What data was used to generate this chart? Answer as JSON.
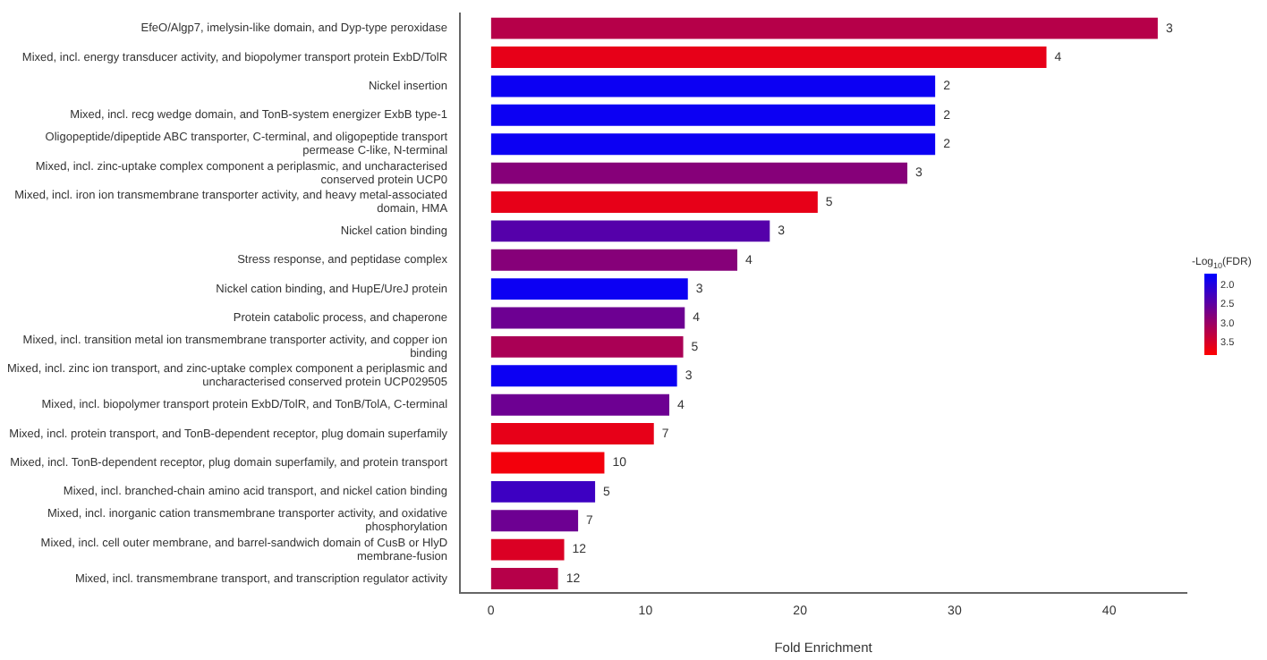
{
  "chart_data": {
    "type": "bar",
    "orientation": "horizontal",
    "xlabel": "Fold Enrichment",
    "clabel": "-Log$_{10}$(FDR)",
    "categories": [
      "EfeO/Algp7, imelysin-like domain, and Dyp-type peroxidase",
      "Mixed, incl. energy transducer activity, and biopolymer transport protein ExbD/TolR",
      "Nickel insertion",
      "Mixed, incl. recg wedge domain, and TonB-system energizer ExbB type-1",
      "Oligopeptide/dipeptide ABC transporter, C-terminal, and oligopeptide transport permease C-like, N-terminal",
      "Mixed, incl. zinc-uptake complex component a periplasmic, and uncharacterised conserved protein UCP0",
      "Mixed, incl. iron ion transmembrane transporter activity, and heavy metal-associated domain, HMA",
      "Nickel cation binding",
      "Stress response, and peptidase complex",
      "Nickel cation binding, and HupE/UreJ protein",
      "Protein catabolic process, and chaperone",
      "Mixed, incl. transition metal ion transmembrane transporter activity, and copper ion binding",
      "Mixed, incl. zinc ion transport, and zinc-uptake complex component a periplasmic and uncharacterised conserved protein UCP029505",
      "Mixed, incl. biopolymer transport protein ExbD/TolR, and TonB/TolA, C-terminal",
      "Mixed, incl. protein transport, and TonB-dependent receptor, plug domain superfamily",
      "Mixed, incl. TonB-dependent receptor, plug domain superfamily, and protein transport",
      "Mixed, incl. branched-chain amino acid transport, and nickel cation binding",
      "Mixed, incl. inorganic cation transmembrane transporter activity, and oxidative phosphorylation",
      "Mixed, incl. cell outer membrane, and barrel-sandwich domain of CusB or HlyD membrane-fusion",
      "Mixed, incl. transmembrane transport, and transcription regulator activity"
    ],
    "values": [
      43.2,
      36.0,
      28.8,
      28.8,
      28.8,
      27.0,
      21.2,
      18.1,
      16.0,
      12.8,
      12.6,
      12.5,
      12.1,
      11.6,
      10.6,
      7.4,
      6.8,
      5.7,
      4.8,
      4.4
    ],
    "cvalues": [
      3.2,
      3.6,
      1.8,
      1.8,
      1.8,
      2.8,
      3.6,
      2.4,
      2.8,
      1.8,
      2.6,
      3.1,
      1.8,
      2.6,
      3.6,
      3.7,
      2.2,
      2.6,
      3.5,
      3.2
    ],
    "annotations": [
      {
        "text": "3",
        "x": 43.2,
        "y": "EfeO/Algp7, imelysin-like domain, and Dyp-type peroxidase"
      },
      {
        "text": "4",
        "x": 36.0,
        "y": "Mixed, incl. energy transducer activity, and biopolymer transport protein ExbD/TolR"
      },
      {
        "text": "2",
        "x": 28.8,
        "y": "Nickel insertion"
      },
      {
        "text": "2",
        "x": 28.8,
        "y": "Mixed, incl. recg wedge domain, and TonB-system energizer ExbB type-1"
      },
      {
        "text": "2",
        "x": 28.8,
        "y": "Oligopeptide/dipeptide ABC transporter, C-terminal, and oligopeptide transport permease C-like, N-terminal"
      },
      {
        "text": "3",
        "x": 27.0,
        "y": "Mixed, incl. zinc-uptake complex component a periplasmic, and uncharacterised conserved protein UCP0"
      },
      {
        "text": "5",
        "x": 21.2,
        "y": "Mixed, incl. iron ion transmembrane transporter activity, and heavy metal-associated domain, HMA"
      },
      {
        "text": "3",
        "x": 18.1,
        "y": "Nickel cation binding"
      },
      {
        "text": "4",
        "x": 16.0,
        "y": "Stress response, and peptidase complex"
      },
      {
        "text": "3",
        "x": 12.8,
        "y": "Nickel cation binding, and HupE/UreJ protein"
      },
      {
        "text": "4",
        "x": 12.6,
        "y": "Protein catabolic process, and chaperone"
      },
      {
        "text": "5",
        "x": 12.5,
        "y": "Mixed, incl. transition metal ion transmembrane transporter activity, and copper ion binding"
      },
      {
        "text": "3",
        "x": 12.1,
        "y": "Mixed, incl. zinc ion transport, and zinc-uptake complex component a periplasmic and uncharacterised conserved protein UCP029505"
      },
      {
        "text": "4",
        "x": 11.6,
        "y": "Mixed, incl. biopolymer transport protein ExbD/TolR, and TonB/TolA, C-terminal"
      },
      {
        "text": "7",
        "x": 10.6,
        "y": "Mixed, incl. protein transport, and TonB-dependent receptor, plug domain superfamily"
      },
      {
        "text": "10",
        "x": 7.4,
        "y": "Mixed, incl. TonB-dependent receptor, plug domain superfamily, and protein transport"
      },
      {
        "text": "5",
        "x": 6.8,
        "y": "Mixed, incl. branched-chain amino acid transport, and nickel cation binding"
      },
      {
        "text": "7",
        "x": 5.7,
        "y": "Mixed, incl. inorganic cation transmembrane transporter activity, and oxidative phosphorylation"
      },
      {
        "text": "12",
        "x": 4.8,
        "y": "Mixed, incl. cell outer membrane, and barrel-sandwich domain of CusB or HlyD membrane-fusion"
      },
      {
        "text": "12",
        "x": 4.4,
        "y": "Mixed, incl. transmembrane transport, and transcription regulator activity"
      }
    ],
    "clim": [
      1.7,
      3.8
    ],
    "cticks": [
      {
        "value": 2,
        "label": "2.0"
      },
      2.5,
      {
        "value": 3,
        "label": "3.0"
      },
      3.5
    ],
    "xlim": [
      -2,
      45
    ],
    "xticks": [
      0,
      10,
      20,
      30,
      40
    ],
    "grid": false,
    "legend": false
  }
}
